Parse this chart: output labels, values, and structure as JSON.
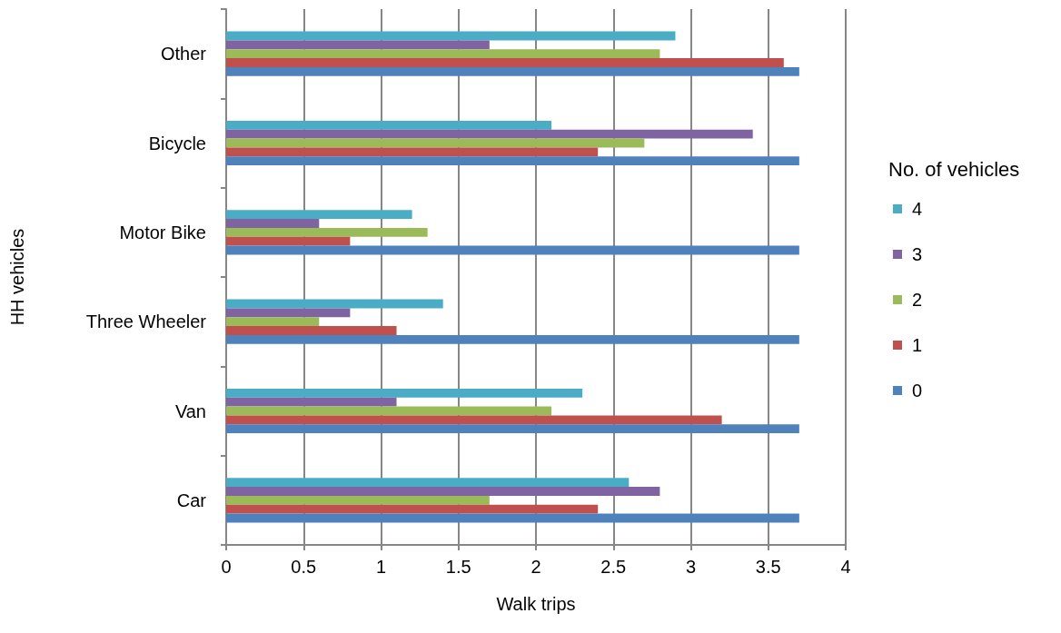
{
  "chart_data": {
    "type": "bar",
    "orientation": "horizontal",
    "xlabel": "Walk trips",
    "ylabel": "HH vehicles",
    "legend_title": "No. of vehicles",
    "legend": "right",
    "categories": [
      "Other",
      "Bicycle",
      "Motor Bike",
      "Three Wheeler",
      "Van",
      "Car"
    ],
    "series": [
      {
        "name": "4",
        "color": "#4bacc6",
        "values": [
          2.9,
          2.1,
          1.2,
          1.4,
          2.3,
          2.6
        ]
      },
      {
        "name": "3",
        "color": "#8064a2",
        "values": [
          1.7,
          3.4,
          0.6,
          0.8,
          1.1,
          2.8
        ]
      },
      {
        "name": "2",
        "color": "#9bbb59",
        "values": [
          2.8,
          2.7,
          1.3,
          0.6,
          2.1,
          1.7
        ]
      },
      {
        "name": "1",
        "color": "#c0504d",
        "values": [
          3.6,
          2.4,
          0.8,
          1.1,
          3.2,
          2.4
        ]
      },
      {
        "name": "0",
        "color": "#4f81bd",
        "values": [
          3.7,
          3.7,
          3.7,
          3.7,
          3.7,
          3.7
        ]
      }
    ],
    "xlim": [
      0,
      4
    ],
    "xticks": [
      0,
      0.5,
      1,
      1.5,
      2,
      2.5,
      3,
      3.5,
      4
    ],
    "grid": "x"
  }
}
